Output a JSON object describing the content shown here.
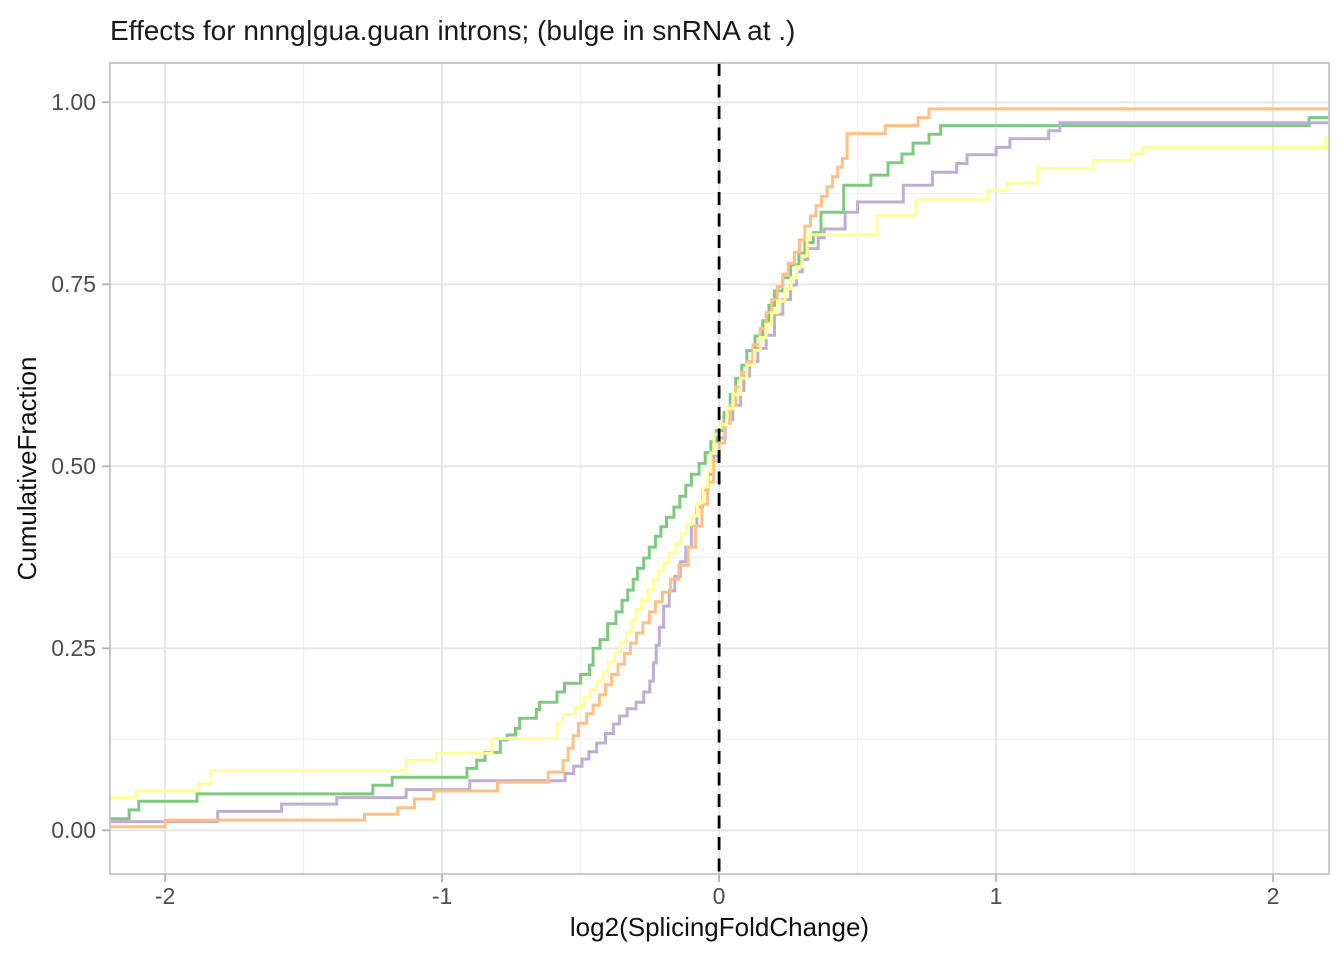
{
  "chart_data": {
    "type": "line",
    "subtype": "step-ecdf",
    "title": "Effects for nnng|gua.guan introns; (bulge in snRNA at .)",
    "xlabel": "log2(SplicingFoldChange)",
    "ylabel": "CumulativeFraction",
    "xlim": [
      -2.199,
      2.202
    ],
    "ylim": [
      -0.06,
      1.054
    ],
    "x_ticks": {
      "major": [
        -2,
        -1,
        0,
        1,
        2
      ],
      "labels": [
        "-2",
        "-1",
        "0",
        "1",
        "2"
      ],
      "minor": [
        -1.5,
        -0.5,
        0.5,
        1.5
      ]
    },
    "y_ticks": {
      "major": [
        0,
        0.25,
        0.5,
        0.75,
        1
      ],
      "labels": [
        "0.00",
        "0.25",
        "0.50",
        "0.75",
        "1.00"
      ],
      "minor": [
        0.125,
        0.375,
        0.625,
        0.875
      ]
    },
    "reference_line": {
      "x": 0,
      "style": "dashed",
      "color": "#000000"
    },
    "grid": true,
    "legend": "none",
    "series": [
      {
        "name": "green",
        "color": "#7FC97F",
        "points": [
          [
            -2.199,
            0.016
          ],
          [
            -2.13,
            0.028
          ],
          [
            -2.095,
            0.04
          ],
          [
            -1.885,
            0.05
          ],
          [
            -1.25,
            0.062
          ],
          [
            -1.18,
            0.073
          ],
          [
            -0.91,
            0.085
          ],
          [
            -0.875,
            0.096
          ],
          [
            -0.845,
            0.107
          ],
          [
            -0.79,
            0.124
          ],
          [
            -0.765,
            0.131
          ],
          [
            -0.735,
            0.14
          ],
          [
            -0.72,
            0.154
          ],
          [
            -0.66,
            0.166
          ],
          [
            -0.648,
            0.176
          ],
          [
            -0.585,
            0.19
          ],
          [
            -0.558,
            0.202
          ],
          [
            -0.5,
            0.214
          ],
          [
            -0.468,
            0.227
          ],
          [
            -0.455,
            0.25
          ],
          [
            -0.43,
            0.262
          ],
          [
            -0.402,
            0.284
          ],
          [
            -0.372,
            0.3
          ],
          [
            -0.35,
            0.316
          ],
          [
            -0.33,
            0.33
          ],
          [
            -0.31,
            0.345
          ],
          [
            -0.295,
            0.36
          ],
          [
            -0.272,
            0.374
          ],
          [
            -0.252,
            0.389
          ],
          [
            -0.23,
            0.404
          ],
          [
            -0.21,
            0.417
          ],
          [
            -0.19,
            0.43
          ],
          [
            -0.163,
            0.444
          ],
          [
            -0.142,
            0.459
          ],
          [
            -0.12,
            0.474
          ],
          [
            -0.1,
            0.489
          ],
          [
            -0.072,
            0.504
          ],
          [
            -0.05,
            0.519
          ],
          [
            -0.03,
            0.534
          ],
          [
            -0.01,
            0.549
          ],
          [
            0.018,
            0.574
          ],
          [
            0.04,
            0.599
          ],
          [
            0.06,
            0.621
          ],
          [
            0.082,
            0.639
          ],
          [
            0.1,
            0.659
          ],
          [
            0.13,
            0.679
          ],
          [
            0.158,
            0.7
          ],
          [
            0.18,
            0.721
          ],
          [
            0.2,
            0.741
          ],
          [
            0.23,
            0.759
          ],
          [
            0.258,
            0.777
          ],
          [
            0.288,
            0.793
          ],
          [
            0.31,
            0.807
          ],
          [
            0.34,
            0.821
          ],
          [
            0.368,
            0.849
          ],
          [
            0.45,
            0.886
          ],
          [
            0.548,
            0.9
          ],
          [
            0.61,
            0.917
          ],
          [
            0.66,
            0.929
          ],
          [
            0.7,
            0.944
          ],
          [
            0.758,
            0.956
          ],
          [
            0.8,
            0.968
          ],
          [
            2.13,
            0.979
          ]
        ]
      },
      {
        "name": "purple",
        "color": "#BEAED4",
        "points": [
          [
            -2.199,
            0.012
          ],
          [
            -1.81,
            0.026
          ],
          [
            -1.58,
            0.036
          ],
          [
            -1.38,
            0.045
          ],
          [
            -1.13,
            0.056
          ],
          [
            -0.9,
            0.068
          ],
          [
            -0.556,
            0.078
          ],
          [
            -0.525,
            0.088
          ],
          [
            -0.495,
            0.098
          ],
          [
            -0.47,
            0.108
          ],
          [
            -0.442,
            0.12
          ],
          [
            -0.41,
            0.133
          ],
          [
            -0.382,
            0.146
          ],
          [
            -0.36,
            0.157
          ],
          [
            -0.332,
            0.167
          ],
          [
            -0.3,
            0.176
          ],
          [
            -0.272,
            0.19
          ],
          [
            -0.25,
            0.205
          ],
          [
            -0.237,
            0.23
          ],
          [
            -0.227,
            0.254
          ],
          [
            -0.216,
            0.279
          ],
          [
            -0.2,
            0.308
          ],
          [
            -0.18,
            0.329
          ],
          [
            -0.16,
            0.349
          ],
          [
            -0.14,
            0.369
          ],
          [
            -0.12,
            0.389
          ],
          [
            -0.1,
            0.418
          ],
          [
            -0.08,
            0.444
          ],
          [
            -0.06,
            0.467
          ],
          [
            -0.04,
            0.489
          ],
          [
            -0.02,
            0.514
          ],
          [
            0.0,
            0.539
          ],
          [
            0.022,
            0.564
          ],
          [
            0.05,
            0.584
          ],
          [
            0.078,
            0.604
          ],
          [
            0.09,
            0.624
          ],
          [
            0.11,
            0.644
          ],
          [
            0.14,
            0.662
          ],
          [
            0.17,
            0.68
          ],
          [
            0.2,
            0.709
          ],
          [
            0.23,
            0.729
          ],
          [
            0.258,
            0.749
          ],
          [
            0.28,
            0.767
          ],
          [
            0.3,
            0.784
          ],
          [
            0.32,
            0.799
          ],
          [
            0.358,
            0.814
          ],
          [
            0.38,
            0.826
          ],
          [
            0.455,
            0.849
          ],
          [
            0.5,
            0.863
          ],
          [
            0.665,
            0.886
          ],
          [
            0.77,
            0.904
          ],
          [
            0.858,
            0.916
          ],
          [
            0.895,
            0.928
          ],
          [
            1.0,
            0.938
          ],
          [
            1.05,
            0.95
          ],
          [
            1.19,
            0.961
          ],
          [
            1.23,
            0.972
          ]
        ]
      },
      {
        "name": "orange",
        "color": "#FDC086",
        "points": [
          [
            -2.199,
            0.005
          ],
          [
            -2.0,
            0.014
          ],
          [
            -1.28,
            0.022
          ],
          [
            -1.16,
            0.031
          ],
          [
            -1.1,
            0.043
          ],
          [
            -1.03,
            0.054
          ],
          [
            -0.8,
            0.066
          ],
          [
            -0.617,
            0.08
          ],
          [
            -0.563,
            0.096
          ],
          [
            -0.545,
            0.113
          ],
          [
            -0.527,
            0.13
          ],
          [
            -0.508,
            0.147
          ],
          [
            -0.478,
            0.16
          ],
          [
            -0.455,
            0.172
          ],
          [
            -0.432,
            0.186
          ],
          [
            -0.41,
            0.2
          ],
          [
            -0.388,
            0.214
          ],
          [
            -0.365,
            0.228
          ],
          [
            -0.342,
            0.243
          ],
          [
            -0.32,
            0.257
          ],
          [
            -0.298,
            0.271
          ],
          [
            -0.275,
            0.285
          ],
          [
            -0.252,
            0.3
          ],
          [
            -0.23,
            0.314
          ],
          [
            -0.205,
            0.327
          ],
          [
            -0.175,
            0.345
          ],
          [
            -0.145,
            0.364
          ],
          [
            -0.112,
            0.389
          ],
          [
            -0.085,
            0.418
          ],
          [
            -0.062,
            0.448
          ],
          [
            -0.042,
            0.478
          ],
          [
            -0.02,
            0.508
          ],
          [
            0.0,
            0.532
          ],
          [
            0.02,
            0.559
          ],
          [
            0.04,
            0.584
          ],
          [
            0.06,
            0.609
          ],
          [
            0.08,
            0.629
          ],
          [
            0.1,
            0.644
          ],
          [
            0.122,
            0.667
          ],
          [
            0.148,
            0.689
          ],
          [
            0.17,
            0.711
          ],
          [
            0.19,
            0.729
          ],
          [
            0.21,
            0.747
          ],
          [
            0.23,
            0.764
          ],
          [
            0.25,
            0.779
          ],
          [
            0.272,
            0.794
          ],
          [
            0.29,
            0.811
          ],
          [
            0.31,
            0.83
          ],
          [
            0.33,
            0.844
          ],
          [
            0.35,
            0.858
          ],
          [
            0.37,
            0.871
          ],
          [
            0.39,
            0.884
          ],
          [
            0.41,
            0.898
          ],
          [
            0.428,
            0.911
          ],
          [
            0.445,
            0.923
          ],
          [
            0.462,
            0.957
          ],
          [
            0.6,
            0.968
          ],
          [
            0.718,
            0.979
          ],
          [
            0.758,
            0.991
          ]
        ]
      },
      {
        "name": "yellow",
        "color": "#FFFF99",
        "points": [
          [
            -2.199,
            0.045
          ],
          [
            -2.105,
            0.054
          ],
          [
            -1.88,
            0.064
          ],
          [
            -1.835,
            0.082
          ],
          [
            -1.13,
            0.096
          ],
          [
            -1.02,
            0.106
          ],
          [
            -0.82,
            0.126
          ],
          [
            -0.585,
            0.147
          ],
          [
            -0.565,
            0.159
          ],
          [
            -0.52,
            0.17
          ],
          [
            -0.49,
            0.182
          ],
          [
            -0.465,
            0.193
          ],
          [
            -0.442,
            0.205
          ],
          [
            -0.42,
            0.218
          ],
          [
            -0.4,
            0.231
          ],
          [
            -0.378,
            0.244
          ],
          [
            -0.356,
            0.258
          ],
          [
            -0.335,
            0.272
          ],
          [
            -0.315,
            0.288
          ],
          [
            -0.3,
            0.303
          ],
          [
            -0.28,
            0.316
          ],
          [
            -0.258,
            0.33
          ],
          [
            -0.238,
            0.344
          ],
          [
            -0.22,
            0.356
          ],
          [
            -0.2,
            0.368
          ],
          [
            -0.18,
            0.381
          ],
          [
            -0.158,
            0.394
          ],
          [
            -0.138,
            0.407
          ],
          [
            -0.118,
            0.42
          ],
          [
            -0.098,
            0.432
          ],
          [
            -0.078,
            0.45
          ],
          [
            -0.058,
            0.472
          ],
          [
            -0.042,
            0.494
          ],
          [
            -0.03,
            0.519
          ],
          [
            -0.018,
            0.544
          ],
          [
            0.0,
            0.557
          ],
          [
            0.028,
            0.579
          ],
          [
            0.05,
            0.599
          ],
          [
            0.078,
            0.621
          ],
          [
            0.1,
            0.639
          ],
          [
            0.128,
            0.659
          ],
          [
            0.15,
            0.677
          ],
          [
            0.17,
            0.694
          ],
          [
            0.19,
            0.711
          ],
          [
            0.212,
            0.727
          ],
          [
            0.238,
            0.744
          ],
          [
            0.26,
            0.759
          ],
          [
            0.28,
            0.774
          ],
          [
            0.3,
            0.789
          ],
          [
            0.318,
            0.818
          ],
          [
            0.57,
            0.845
          ],
          [
            0.71,
            0.866
          ],
          [
            0.97,
            0.879
          ],
          [
            1.04,
            0.889
          ],
          [
            1.15,
            0.909
          ],
          [
            1.35,
            0.92
          ],
          [
            1.49,
            0.929
          ],
          [
            1.53,
            0.938
          ],
          [
            2.19,
            0.951
          ]
        ]
      }
    ]
  },
  "style": {
    "background": "#ffffff",
    "panel_background": "#ffffff",
    "grid_major": "#e5e5e5",
    "grid_minor": "#f0f0f0",
    "panel_border": "#c4c4c4",
    "tick_mark": "#b3b3b3",
    "tick_label_color": "#4d4d4d",
    "title_color": "#1a1a1a",
    "axis_title_color": "#111111"
  }
}
